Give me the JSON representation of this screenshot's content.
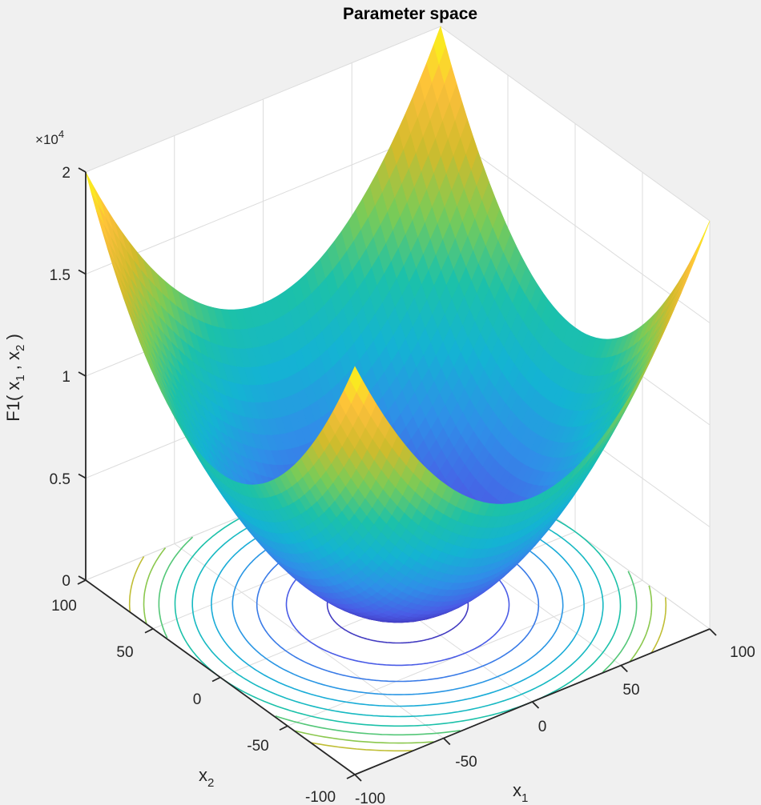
{
  "figure": {
    "background": "#f0f0f0",
    "axes_background": "#ffffff"
  },
  "chart_data": {
    "type": "surface3d",
    "title": "Parameter space",
    "function": "F1(x1, x2) = x1^2 + x2^2",
    "xlabel": "x",
    "xlabel_sub": "1",
    "ylabel": "x",
    "ylabel_sub": "2",
    "zlabel": "F1( x",
    "zlabel_full": "F1( x1 , x2 )",
    "zlabel_parts": {
      "pre": "F1( x",
      "s1": "1",
      "mid": " , x",
      "s2": "2",
      "post": " )"
    },
    "zlim": [
      0,
      20000
    ],
    "xlim": [
      -100,
      100
    ],
    "ylim": [
      -100,
      100
    ],
    "z_exponent_label": {
      "times": "×",
      "base": "10",
      "exp": "4"
    },
    "x_ticks": [
      "-100",
      "-50",
      "0",
      "50",
      "100"
    ],
    "x_tick_values": [
      -100,
      -50,
      0,
      50,
      100
    ],
    "y_ticks": [
      "-100",
      "-50",
      "0",
      "50",
      "100"
    ],
    "y_tick_values": [
      -100,
      -50,
      0,
      50,
      100
    ],
    "z_ticks": [
      "0",
      "0.5",
      "1",
      "1.5",
      "2"
    ],
    "z_tick_values": [
      0,
      5000,
      10000,
      15000,
      20000
    ],
    "grid": true,
    "colormap": "parula",
    "colormap_stops": [
      "#3e26a8",
      "#4a5ce6",
      "#2f8fe8",
      "#14b3d3",
      "#1cc1a9",
      "#7acb57",
      "#d1bb2c",
      "#fdbf3b",
      "#f9fb15"
    ],
    "contour_levels": [
      1000,
      2500,
      4000,
      5500,
      7000,
      8500,
      10000,
      11500,
      13000,
      14500
    ],
    "contour_on_floor": true,
    "surface_min": {
      "x1": 0,
      "x2": 0,
      "F1": 0
    },
    "surface_max_corners": [
      {
        "x1": -100,
        "x2": -100,
        "F1": 20000
      },
      {
        "x1": -100,
        "x2": 100,
        "F1": 20000
      },
      {
        "x1": 100,
        "x2": -100,
        "F1": 20000
      },
      {
        "x1": 100,
        "x2": 100,
        "F1": 20000
      }
    ]
  }
}
